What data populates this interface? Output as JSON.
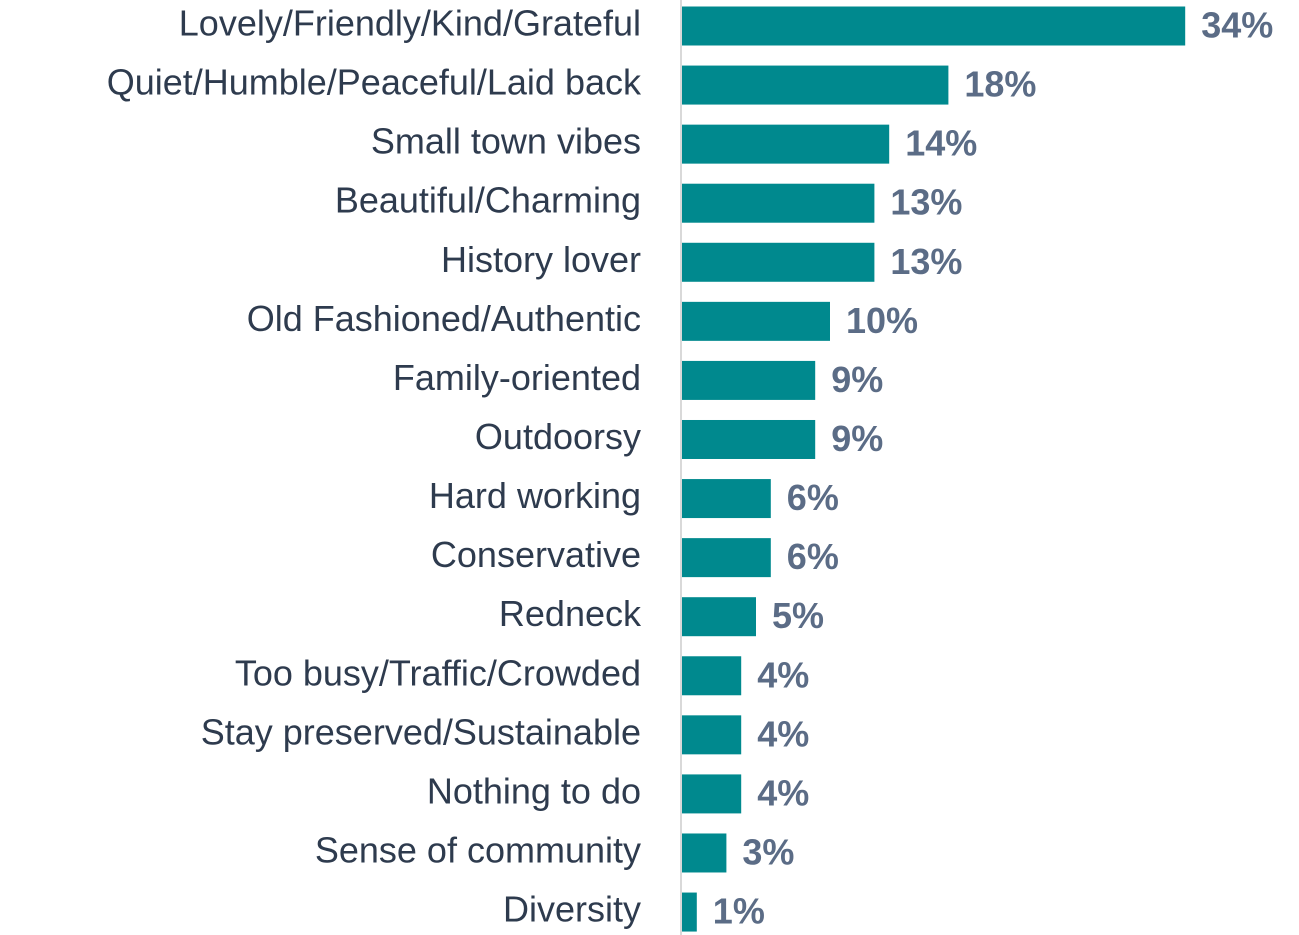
{
  "chart_data": {
    "type": "bar",
    "orientation": "horizontal",
    "color": "#00898e",
    "categories": [
      "Lovely/Friendly/Kind/Grateful",
      "Quiet/Humble/Peaceful/Laid back",
      "Small town vibes",
      "Beautiful/Charming",
      "History lover",
      "Old Fashioned/Authentic",
      "Family-oriented",
      "Outdoorsy",
      "Hard working",
      "Conservative",
      "Redneck",
      "Too busy/Traffic/Crowded",
      "Stay preserved/Sustainable",
      "Nothing to do",
      "Sense of community",
      "Diversity"
    ],
    "values": [
      34,
      18,
      14,
      13,
      13,
      10,
      9,
      9,
      6,
      6,
      5,
      4,
      4,
      4,
      3,
      1
    ],
    "value_labels": [
      "34%",
      "18%",
      "14%",
      "13%",
      "13%",
      "10%",
      "9%",
      "9%",
      "6%",
      "6%",
      "5%",
      "4%",
      "4%",
      "4%",
      "3%",
      "1%"
    ]
  }
}
